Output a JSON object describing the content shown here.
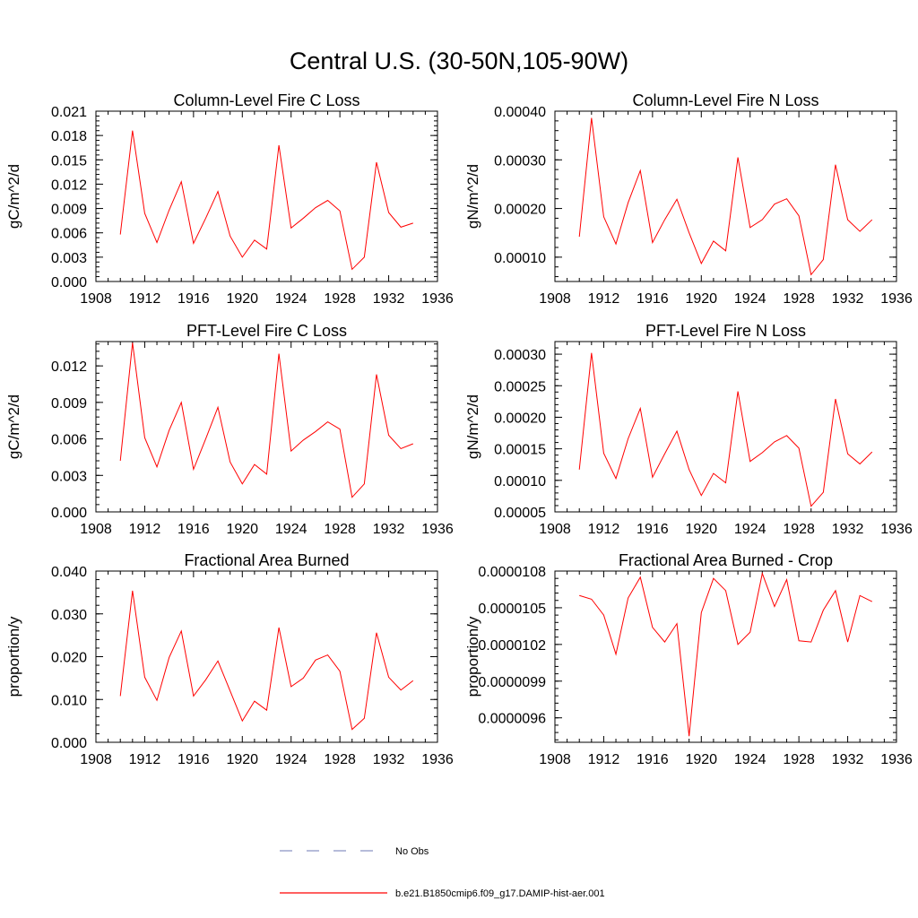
{
  "figure": {
    "title": "Central U.S. (30-50N,105-90W)",
    "colors": {
      "model": "#ff0000",
      "obs": "#8a93c4",
      "frame": "#000000"
    },
    "legend": [
      {
        "label": "No Obs",
        "style": "dashed",
        "color": "#8a93c4"
      },
      {
        "label": "b.e21.B1850cmip6.f09_g17.DAMIP-hist-aer.001",
        "style": "solid",
        "color": "#ff0000"
      }
    ]
  },
  "chart_data": [
    {
      "type": "line",
      "title": "Column-Level Fire C Loss",
      "ylabel": "gC/m^2/d",
      "xlim": [
        1908,
        1936
      ],
      "ylim": [
        0,
        0.021
      ],
      "x_ticks": [
        "1908",
        "1912",
        "1916",
        "1920",
        "1924",
        "1928",
        "1932",
        "1936"
      ],
      "y_ticks": [
        "0.000",
        "0.003",
        "0.006",
        "0.009",
        "0.012",
        "0.015",
        "0.018",
        "0.021"
      ],
      "x": [
        1910,
        1911,
        1912,
        1913,
        1914,
        1915,
        1916,
        1917,
        1918,
        1919,
        1920,
        1921,
        1922,
        1923,
        1924,
        1925,
        1926,
        1927,
        1928,
        1929,
        1930,
        1931,
        1932,
        1933,
        1934
      ],
      "series": [
        {
          "name": "b.e21.B1850cmip6.f09_g17.DAMIP-hist-aer.001",
          "values": [
            0.0058,
            0.0186,
            0.0084,
            0.0048,
            0.0088,
            0.0123,
            0.0047,
            0.0078,
            0.0111,
            0.0056,
            0.003,
            0.0051,
            0.004,
            0.0168,
            0.0066,
            0.0078,
            0.0091,
            0.01,
            0.0087,
            0.0015,
            0.003,
            0.0147,
            0.0085,
            0.0067,
            0.0072
          ]
        }
      ]
    },
    {
      "type": "line",
      "title": "Column-Level Fire N Loss",
      "ylabel": "gN/m^2/d",
      "xlim": [
        1908,
        1936
      ],
      "ylim": [
        5e-05,
        0.0004
      ],
      "x_ticks": [
        "1908",
        "1912",
        "1916",
        "1920",
        "1924",
        "1928",
        "1932",
        "1936"
      ],
      "y_ticks": [
        "0.00010",
        "0.00020",
        "0.00030",
        "0.00040"
      ],
      "x": [
        1910,
        1911,
        1912,
        1913,
        1914,
        1915,
        1916,
        1917,
        1918,
        1919,
        1920,
        1921,
        1922,
        1923,
        1924,
        1925,
        1926,
        1927,
        1928,
        1929,
        1930,
        1931,
        1932,
        1933,
        1934
      ],
      "series": [
        {
          "name": "b.e21.B1850cmip6.f09_g17.DAMIP-hist-aer.001",
          "values": [
            0.000142,
            0.000386,
            0.000183,
            0.000127,
            0.000212,
            0.000278,
            0.00013,
            0.000177,
            0.000219,
            0.00015,
            8.7e-05,
            0.000133,
            0.000113,
            0.000305,
            0.000161,
            0.000177,
            0.000209,
            0.00022,
            0.000185,
            6.4e-05,
            9.5e-05,
            0.00029,
            0.000177,
            0.000153,
            0.000177
          ]
        }
      ]
    },
    {
      "type": "line",
      "title": "PFT-Level Fire C Loss",
      "ylabel": "gC/m^2/d",
      "xlim": [
        1908,
        1936
      ],
      "ylim": [
        0,
        0.014
      ],
      "x_ticks": [
        "1908",
        "1912",
        "1916",
        "1920",
        "1924",
        "1928",
        "1932",
        "1936"
      ],
      "y_ticks": [
        "0.000",
        "0.003",
        "0.006",
        "0.009",
        "0.012"
      ],
      "x": [
        1910,
        1911,
        1912,
        1913,
        1914,
        1915,
        1916,
        1917,
        1918,
        1919,
        1920,
        1921,
        1922,
        1923,
        1924,
        1925,
        1926,
        1927,
        1928,
        1929,
        1930,
        1931,
        1932,
        1933,
        1934
      ],
      "series": [
        {
          "name": "b.e21.B1850cmip6.f09_g17.DAMIP-hist-aer.001",
          "values": [
            0.0042,
            0.0139,
            0.0061,
            0.0037,
            0.0067,
            0.009,
            0.0035,
            0.006,
            0.0086,
            0.0041,
            0.0023,
            0.0039,
            0.0031,
            0.013,
            0.005,
            0.0059,
            0.0066,
            0.0074,
            0.0068,
            0.0012,
            0.0023,
            0.0113,
            0.0063,
            0.0052,
            0.0056
          ]
        }
      ]
    },
    {
      "type": "line",
      "title": "PFT-Level Fire N Loss",
      "ylabel": "gN/m^2/d",
      "xlim": [
        1908,
        1936
      ],
      "ylim": [
        5e-05,
        0.00032
      ],
      "x_ticks": [
        "1908",
        "1912",
        "1916",
        "1920",
        "1924",
        "1928",
        "1932",
        "1936"
      ],
      "y_ticks": [
        "0.00005",
        "0.00010",
        "0.00015",
        "0.00020",
        "0.00025",
        "0.00030"
      ],
      "x": [
        1910,
        1911,
        1912,
        1913,
        1914,
        1915,
        1916,
        1917,
        1918,
        1919,
        1920,
        1921,
        1922,
        1923,
        1924,
        1925,
        1926,
        1927,
        1928,
        1929,
        1930,
        1931,
        1932,
        1933,
        1934
      ],
      "series": [
        {
          "name": "b.e21.B1850cmip6.f09_g17.DAMIP-hist-aer.001",
          "values": [
            0.000117,
            0.000302,
            0.000143,
            0.000103,
            0.000166,
            0.000214,
            0.000105,
            0.000142,
            0.000178,
            0.000117,
            7.6e-05,
            0.000111,
            9.6e-05,
            0.000241,
            0.00013,
            0.000144,
            0.000161,
            0.000171,
            0.000151,
            5.9e-05,
            8.1e-05,
            0.000229,
            0.000142,
            0.000126,
            0.000145
          ]
        }
      ]
    },
    {
      "type": "line",
      "title": "Fractional Area Burned",
      "ylabel": "proportion/y",
      "xlim": [
        1908,
        1936
      ],
      "ylim": [
        0,
        0.04
      ],
      "x_ticks": [
        "1908",
        "1912",
        "1916",
        "1920",
        "1924",
        "1928",
        "1932",
        "1936"
      ],
      "y_ticks": [
        "0.000",
        "0.010",
        "0.020",
        "0.030",
        "0.040"
      ],
      "x": [
        1910,
        1911,
        1912,
        1913,
        1914,
        1915,
        1916,
        1917,
        1918,
        1919,
        1920,
        1921,
        1922,
        1923,
        1924,
        1925,
        1926,
        1927,
        1928,
        1929,
        1930,
        1931,
        1932,
        1933,
        1934
      ],
      "series": [
        {
          "name": "b.e21.B1850cmip6.f09_g17.DAMIP-hist-aer.001",
          "values": [
            0.0108,
            0.0354,
            0.0152,
            0.0098,
            0.0198,
            0.026,
            0.0108,
            0.0146,
            0.019,
            0.012,
            0.005,
            0.0096,
            0.0075,
            0.0268,
            0.013,
            0.015,
            0.0192,
            0.0204,
            0.0166,
            0.003,
            0.0056,
            0.0256,
            0.0152,
            0.0122,
            0.0144
          ]
        }
      ]
    },
    {
      "type": "line",
      "title": "Fractional Area Burned - Crop",
      "ylabel": "proportion/y",
      "xlim": [
        1908,
        1936
      ],
      "ylim": [
        9.4e-06,
        1.08e-05
      ],
      "x_ticks": [
        "1908",
        "1912",
        "1916",
        "1920",
        "1924",
        "1928",
        "1932",
        "1936"
      ],
      "y_ticks": [
        "0.0000096",
        "0.0000099",
        "0.0000102",
        "0.0000105",
        "0.0000108"
      ],
      "x": [
        1910,
        1911,
        1912,
        1913,
        1914,
        1915,
        1916,
        1917,
        1918,
        1919,
        1920,
        1921,
        1922,
        1923,
        1924,
        1925,
        1926,
        1927,
        1928,
        1929,
        1930,
        1931,
        1932,
        1933,
        1934
      ],
      "series": [
        {
          "name": "b.e21.B1850cmip6.f09_g17.DAMIP-hist-aer.001",
          "values": [
            1.06e-05,
            1.057e-05,
            1.044e-05,
            1.012e-05,
            1.058e-05,
            1.075e-05,
            1.034e-05,
            1.022e-05,
            1.037e-05,
            9.45e-06,
            1.046e-05,
            1.074e-05,
            1.064e-05,
            1.02e-05,
            1.03e-05,
            1.078e-05,
            1.051e-05,
            1.073e-05,
            1.023e-05,
            1.022e-05,
            1.048e-05,
            1.064e-05,
            1.022e-05,
            1.06e-05,
            1.055e-05
          ]
        }
      ]
    }
  ]
}
